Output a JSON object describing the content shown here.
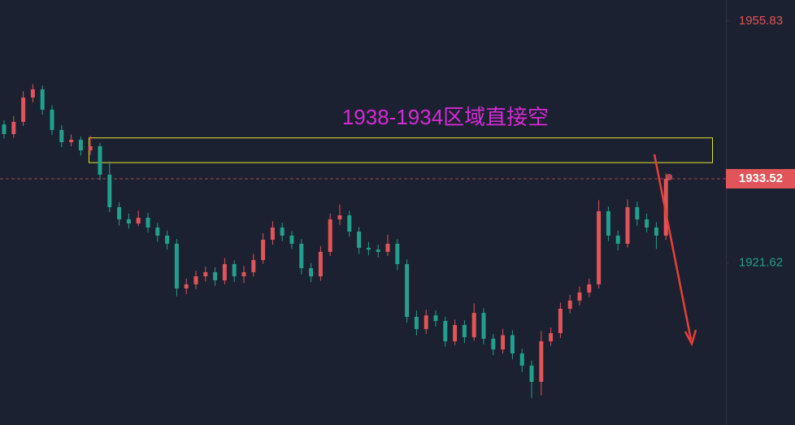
{
  "chart_data": {
    "type": "candlestick",
    "annotation": "1938-1934区域直接空",
    "background": "#1b2130",
    "up_color": "#e0545a",
    "down_color": "#22a08e",
    "ylim": [
      1898.7,
      1958.8
    ],
    "yticks": [
      1955.83,
      1921.62
    ],
    "ytick_colors": [
      "#e0545a",
      "#22a08e"
    ],
    "current_price": {
      "value": 1933.52,
      "color": "#e0545a"
    },
    "zone": {
      "high": 1939.3,
      "low": 1935.8,
      "color": "#e6e62e"
    },
    "arrow_color": "#e8403a",
    "open": [
      1941.2,
      1939.84,
      1941.57,
      1945.01,
      1946.16,
      1943.29,
      1940.42,
      1938.69,
      1939.04,
      1937.54,
      1938.12,
      1934.1,
      1929.5,
      1927.78,
      1927.2,
      1928.01,
      1926.63,
      1925.48,
      1924.33,
      1918.01,
      1918.59,
      1919.73,
      1920.31,
      1919.16,
      1921.46,
      1919.73,
      1920.31,
      1922.03,
      1924.9,
      1926.63,
      1925.48,
      1924.33,
      1920.88,
      1919.73,
      1923.18,
      1927.78,
      1928.35,
      1926.05,
      1923.76,
      1923.5,
      1923.18,
      1924.33,
      1921.46,
      1913.99,
      1912.27,
      1914.2,
      1913.41,
      1910.54,
      1912.84,
      1911.12,
      1914.56,
      1910.9,
      1909.39,
      1911.4,
      1908.82,
      1907.1,
      1904.8,
      1910.54,
      1911.69,
      1915.14,
      1916.29,
      1917.44,
      1918.59,
      1928.93,
      1925.48,
      1924.33,
      1929.5,
      1927.78,
      1926.63,
      1925.48
    ],
    "high": [
      1941.8,
      1942.4,
      1945.9,
      1946.9,
      1946.7,
      1943.9,
      1941.1,
      1939.8,
      1939.5,
      1939.6,
      1938.6,
      1936.0,
      1930.2,
      1928.6,
      1929.0,
      1928.7,
      1927.3,
      1926.2,
      1925.0,
      1919.4,
      1920.5,
      1921.1,
      1921.0,
      1922.3,
      1922.0,
      1921.2,
      1922.9,
      1925.8,
      1927.5,
      1927.3,
      1926.1,
      1925.0,
      1921.6,
      1924.0,
      1928.6,
      1929.9,
      1929.0,
      1926.7,
      1924.6,
      1924.2,
      1925.6,
      1925.0,
      1922.1,
      1914.9,
      1915.0,
      1914.9,
      1914.0,
      1913.6,
      1913.5,
      1915.9,
      1915.2,
      1911.6,
      1912.3,
      1912.1,
      1909.5,
      1907.8,
      1912.0,
      1912.5,
      1916.0,
      1917.1,
      1918.3,
      1919.4,
      1930.5,
      1929.6,
      1926.2,
      1930.6,
      1930.3,
      1928.6,
      1927.4,
      1934.3
    ],
    "low": [
      1939.2,
      1939.3,
      1941.0,
      1944.3,
      1942.6,
      1939.7,
      1938.0,
      1938.1,
      1936.8,
      1936.9,
      1933.3,
      1928.8,
      1926.9,
      1926.5,
      1926.8,
      1925.9,
      1924.6,
      1923.5,
      1916.9,
      1917.2,
      1917.9,
      1919.0,
      1918.4,
      1918.6,
      1918.9,
      1918.8,
      1919.7,
      1921.5,
      1924.2,
      1924.7,
      1923.6,
      1920.0,
      1918.9,
      1919.1,
      1922.6,
      1927.0,
      1925.3,
      1922.9,
      1922.7,
      1922.4,
      1922.6,
      1920.6,
      1913.2,
      1911.4,
      1911.6,
      1912.6,
      1909.8,
      1910.0,
      1910.3,
      1910.6,
      1910.1,
      1908.6,
      1908.8,
      1908.0,
      1906.2,
      1902.5,
      1902.9,
      1909.9,
      1911.0,
      1914.5,
      1915.6,
      1916.8,
      1918.0,
      1924.7,
      1923.4,
      1923.8,
      1926.9,
      1925.9,
      1923.6,
      1924.9
    ],
    "close": [
      1939.84,
      1941.57,
      1945.01,
      1946.16,
      1943.29,
      1940.42,
      1938.69,
      1939.04,
      1937.54,
      1938.12,
      1934.1,
      1929.5,
      1927.78,
      1927.2,
      1928.01,
      1926.63,
      1925.48,
      1924.33,
      1918.01,
      1918.59,
      1919.73,
      1920.31,
      1919.16,
      1921.46,
      1919.73,
      1920.31,
      1922.03,
      1924.9,
      1926.63,
      1925.48,
      1924.33,
      1920.88,
      1919.73,
      1923.18,
      1927.78,
      1928.35,
      1926.05,
      1923.76,
      1923.5,
      1923.18,
      1924.33,
      1921.46,
      1913.99,
      1912.27,
      1914.2,
      1913.41,
      1910.54,
      1912.84,
      1911.12,
      1914.56,
      1910.9,
      1909.39,
      1911.4,
      1908.82,
      1907.1,
      1904.8,
      1910.54,
      1911.69,
      1915.14,
      1916.29,
      1917.44,
      1918.59,
      1928.93,
      1925.48,
      1924.33,
      1929.5,
      1927.78,
      1926.63,
      1925.48,
      1933.52
    ]
  }
}
